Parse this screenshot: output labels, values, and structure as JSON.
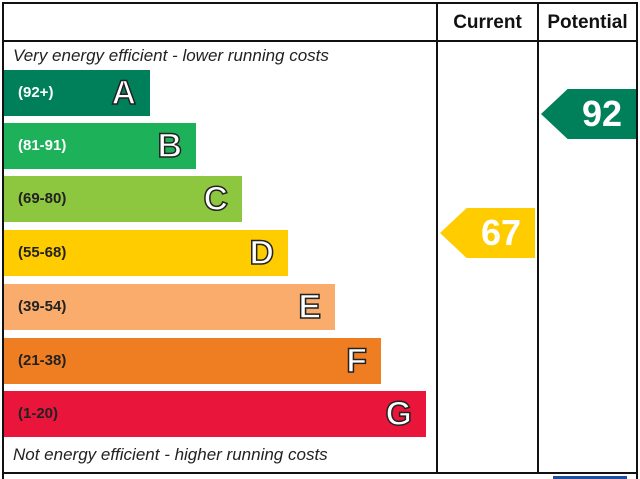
{
  "chart_data": {
    "type": "bar",
    "header": {
      "current": "Current",
      "potential": "Potential"
    },
    "top_note": "Very energy efficient - lower running costs",
    "bottom_note": "Not energy efficient - higher running costs",
    "bands": [
      {
        "letter": "A",
        "range": "(92+)",
        "color": "#00805a"
      },
      {
        "letter": "B",
        "range": "(81-91)",
        "color": "#1db25a"
      },
      {
        "letter": "C",
        "range": "(69-80)",
        "color": "#8dc63f"
      },
      {
        "letter": "D",
        "range": "(55-68)",
        "color": "#ffcc00"
      },
      {
        "letter": "E",
        "range": "(39-54)",
        "color": "#f9ac6b"
      },
      {
        "letter": "F",
        "range": "(21-38)",
        "color": "#ef7d22"
      },
      {
        "letter": "G",
        "range": "(1-20)",
        "color": "#e9153b"
      }
    ],
    "current": {
      "value": "67",
      "band": "D",
      "color": "#ffcc00"
    },
    "potential": {
      "value": "92",
      "band": "A",
      "color": "#00805a"
    }
  }
}
